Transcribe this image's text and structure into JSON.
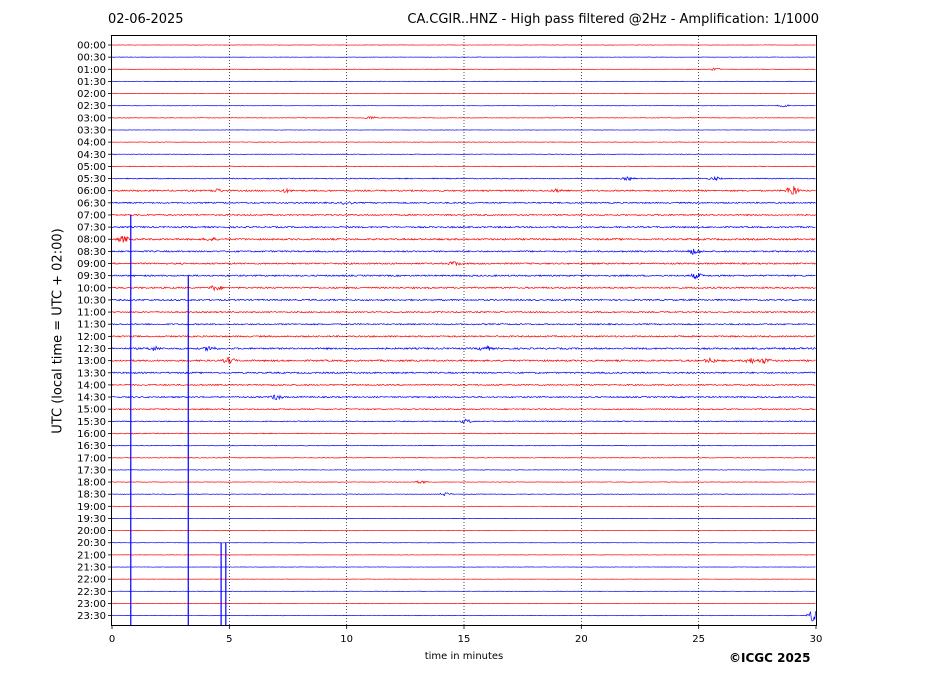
{
  "header": {
    "date": "02-06-2025",
    "title": "CA.CGIR..HNZ - High pass filtered @2Hz - Amplification: 1/1000"
  },
  "footer": {
    "copyright": "©ICGC 2025"
  },
  "chart_data": {
    "type": "line",
    "title": "CA.CGIR..HNZ - High pass filtered @2Hz - Amplification: 1/1000",
    "xlabel": "time in minutes",
    "ylabel": "UTC (local time = UTC + 02:00)",
    "xlim": [
      0,
      30
    ],
    "x_ticks": [
      0,
      5,
      10,
      15,
      20,
      25,
      30
    ],
    "x_tick_labels": [
      "0",
      "5",
      "10",
      "15",
      "20",
      "25",
      "30"
    ],
    "vertical_grid_minutes": [
      5,
      10,
      15,
      20,
      25
    ],
    "grid": "vertical dotted",
    "row_labels": [
      "00:00",
      "00:30",
      "01:00",
      "01:30",
      "02:00",
      "02:30",
      "03:00",
      "03:30",
      "04:00",
      "04:30",
      "05:00",
      "05:30",
      "06:00",
      "06:30",
      "07:00",
      "07:30",
      "08:00",
      "08:30",
      "09:00",
      "09:30",
      "10:00",
      "10:30",
      "11:00",
      "11:30",
      "12:00",
      "12:30",
      "13:00",
      "13:30",
      "14:00",
      "14:30",
      "15:00",
      "15:30",
      "16:00",
      "16:30",
      "17:00",
      "17:30",
      "18:00",
      "18:30",
      "19:00",
      "19:30",
      "20:00",
      "20:30",
      "21:00",
      "21:30",
      "22:00",
      "22:30",
      "23:00",
      "23:30"
    ],
    "row_colors": [
      "#ff0000",
      "#0000ff"
    ],
    "row_noise_level": [
      0.2,
      0.2,
      0.3,
      0.3,
      0.3,
      0.2,
      0.3,
      0.2,
      0.3,
      0.3,
      0.4,
      0.6,
      0.9,
      0.8,
      0.8,
      0.9,
      1.0,
      0.9,
      0.9,
      0.9,
      0.9,
      0.9,
      0.8,
      0.8,
      0.9,
      1.0,
      1.0,
      0.9,
      0.8,
      0.8,
      0.7,
      0.6,
      0.5,
      0.4,
      0.4,
      0.3,
      0.3,
      0.3,
      0.2,
      0.2,
      0.2,
      0.2,
      0.2,
      0.2,
      0.2,
      0.2,
      0.2,
      0.2
    ],
    "events": [
      {
        "row": 2,
        "minute": 25.7,
        "amp": 0.25
      },
      {
        "row": 5,
        "minute": 28.6,
        "amp": 0.35
      },
      {
        "row": 6,
        "minute": 11.0,
        "amp": 0.35
      },
      {
        "row": 11,
        "minute": 25.7,
        "amp": 0.3
      },
      {
        "row": 11,
        "minute": 22.0,
        "amp": 0.3
      },
      {
        "row": 12,
        "minute": 4.5,
        "amp": 0.3
      },
      {
        "row": 12,
        "minute": 7.4,
        "amp": 0.3
      },
      {
        "row": 12,
        "minute": 19.0,
        "amp": 0.3
      },
      {
        "row": 12,
        "minute": 29.0,
        "amp": 1.2
      },
      {
        "row": 13,
        "minute": 10.0,
        "amp": 0.3
      },
      {
        "row": 16,
        "minute": 0.5,
        "amp": 0.6
      },
      {
        "row": 16,
        "minute": 4.2,
        "amp": 0.3
      },
      {
        "row": 17,
        "minute": 24.8,
        "amp": 0.6
      },
      {
        "row": 18,
        "minute": 14.6,
        "amp": 0.4
      },
      {
        "row": 19,
        "minute": 24.9,
        "amp": 0.5
      },
      {
        "row": 20,
        "minute": 4.4,
        "amp": 0.5
      },
      {
        "row": 25,
        "minute": 1.8,
        "amp": 0.4
      },
      {
        "row": 25,
        "minute": 4.2,
        "amp": 0.5
      },
      {
        "row": 25,
        "minute": 15.9,
        "amp": 0.5
      },
      {
        "row": 26,
        "minute": 5.0,
        "amp": 0.6
      },
      {
        "row": 26,
        "minute": 25.5,
        "amp": 0.5
      },
      {
        "row": 26,
        "minute": 27.2,
        "amp": 0.5
      },
      {
        "row": 26,
        "minute": 27.8,
        "amp": 0.5
      },
      {
        "row": 29,
        "minute": 7.0,
        "amp": 0.5
      },
      {
        "row": 31,
        "minute": 15.1,
        "amp": 0.4
      },
      {
        "row": 36,
        "minute": 13.2,
        "amp": 0.3
      },
      {
        "row": 37,
        "minute": 14.2,
        "amp": 0.35
      },
      {
        "row": 47,
        "minute": 29.9,
        "amp": 1.3
      }
    ],
    "spikes": [
      {
        "minute": 0.8,
        "from_row": 14,
        "to_row": 47
      },
      {
        "minute": 3.25,
        "from_row": 19,
        "to_row": 47
      },
      {
        "minute": 4.65,
        "from_row": 41,
        "to_row": 47
      },
      {
        "minute": 4.85,
        "from_row": 41,
        "to_row": 47
      }
    ]
  }
}
